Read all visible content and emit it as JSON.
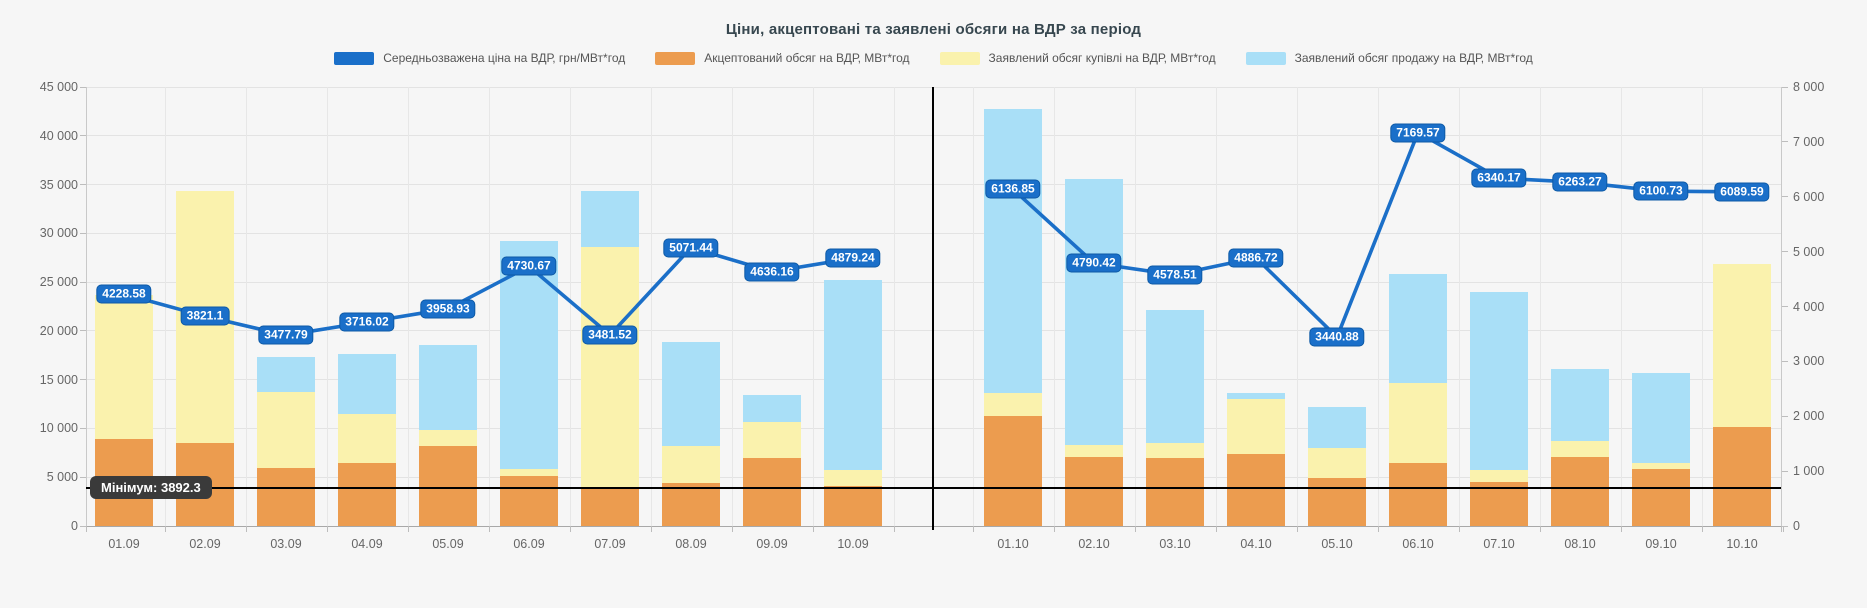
{
  "title": "Ціни, акцептовані та заявлені обсяги на ВДР за період",
  "legend": [
    {
      "label": "Середньозважена ціна на ВДР, грн/МВт*год",
      "color": "#1a6fc9"
    },
    {
      "label": "Акцептований обсяг на ВДР, МВт*год",
      "color": "#ec9c4f"
    },
    {
      "label": "Заявлений обсяг купівлі на ВДР, МВт*год",
      "color": "#faf2ad"
    },
    {
      "label": "Заявлений обсяг продажу на ВДР, МВт*год",
      "color": "#a9dff7"
    }
  ],
  "chart_data": {
    "type": "composite-bar-line",
    "categories": [
      "01.09",
      "02.09",
      "03.09",
      "04.09",
      "05.09",
      "06.09",
      "07.09",
      "08.09",
      "09.09",
      "10.09",
      "01.10",
      "02.10",
      "03.10",
      "04.10",
      "05.10",
      "06.10",
      "07.10",
      "08.10",
      "09.10",
      "10.10"
    ],
    "period_divider_after_index": 9,
    "left_axis": {
      "title": "",
      "min": 0,
      "max": 45000,
      "step": 5000,
      "tick_labels": [
        "0",
        "5 000",
        "10 000",
        "15 000",
        "20 000",
        "25 000",
        "30 000",
        "35 000",
        "40 000",
        "45 000"
      ]
    },
    "right_axis": {
      "title": "",
      "min": 0,
      "max": 8000,
      "step": 1000,
      "tick_labels": [
        "0",
        "1 000",
        "2 000",
        "3 000",
        "4 000",
        "5 000",
        "6 000",
        "7 000",
        "8 000"
      ]
    },
    "series": [
      {
        "name": "Середньозважена ціна на ВДР, грн/МВт*год",
        "type": "line",
        "axis": "right",
        "values": [
          4228.58,
          3821.1,
          3477.79,
          3716.02,
          3958.93,
          4730.67,
          3481.52,
          5071.44,
          4636.16,
          4879.24,
          6136.85,
          4790.42,
          4578.51,
          4886.72,
          3440.88,
          7169.57,
          6340.17,
          6263.27,
          6100.73,
          6089.59
        ]
      },
      {
        "name": "Акцептований обсяг на ВДР, МВт*год",
        "type": "bar-stack",
        "axis": "left",
        "values": [
          8900,
          8500,
          5900,
          6450,
          8200,
          5125,
          3900,
          4430,
          7000,
          4070,
          11260,
          7060,
          6955,
          7400,
          4950,
          6440,
          4530,
          7110,
          5860,
          10130
        ]
      },
      {
        "name": "Заявлений обсяг купівлі на ВДР, МВт*год",
        "type": "bar-stack",
        "axis": "left",
        "values": [
          14800,
          25800,
          7850,
          4990,
          1600,
          695,
          24700,
          3800,
          3630,
          1650,
          2380,
          1200,
          1550,
          5650,
          3040,
          8200,
          1210,
          1620,
          620,
          16770
        ]
      },
      {
        "name": "Заявлений обсяг продажу на ВДР, МВт*год",
        "type": "bar-stack",
        "axis": "left",
        "values": [
          0,
          0,
          3550,
          6210,
          8800,
          23380,
          5700,
          10670,
          2820,
          19460,
          29060,
          27320,
          13625,
          550,
          4240,
          11210,
          18290,
          7340,
          9220,
          0
        ]
      }
    ],
    "min_guide": {
      "label": "Мінімум: 3892.3",
      "value": 3892.3,
      "axis": "left"
    },
    "grid": true,
    "legend_position": "top"
  },
  "colors": {
    "background": "#f6f6f6",
    "grid": "#e3e3e3",
    "axis_line": "#c9c9c9",
    "bottom_axis": "#a8a8a8",
    "axis_text": "#666666",
    "line": "#1b6fc8",
    "point_pill_bg": "#1a6fc9",
    "point_pill_border": "#0d5aa6",
    "bar_accepted": "#ec9c4f",
    "bar_buy": "#faf2ad",
    "bar_sell": "#a9dff7",
    "divider": "#000000",
    "min_line": "#000000",
    "min_pill_bg": "#3a3a3a",
    "title_text": "#37474f"
  }
}
